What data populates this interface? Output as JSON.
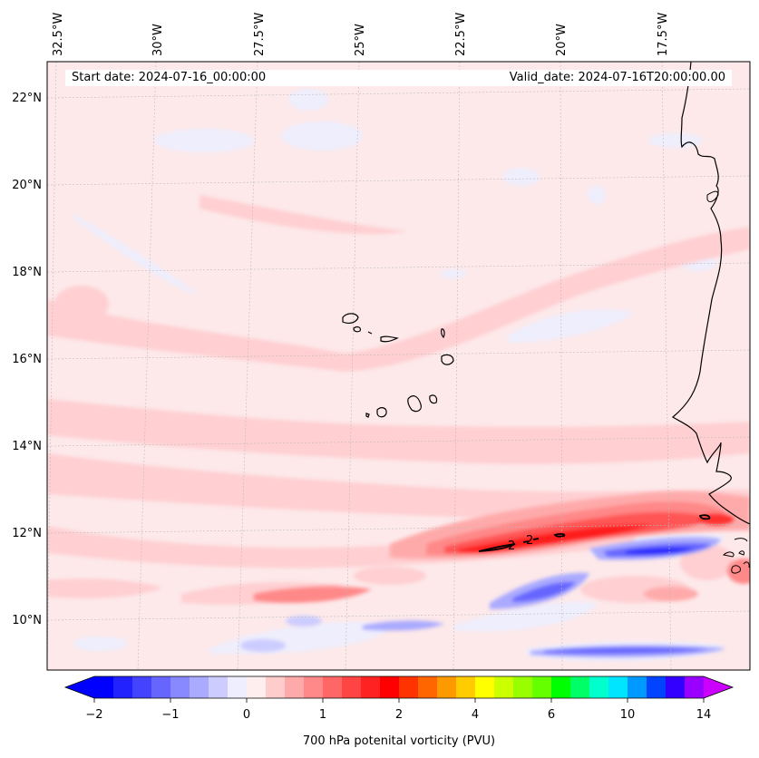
{
  "map": {
    "start_date": "Start date: 2024-07-16_00:00:00",
    "valid_date": "Valid_date: 2024-07-16T20:00:00.00",
    "lon_labels": [
      "32.5°W",
      "30°W",
      "27.5°W",
      "25°W",
      "22.5°W",
      "20°W",
      "17.5°W"
    ],
    "lat_labels": [
      "22°N",
      "20°N",
      "18°N",
      "16°N",
      "14°N",
      "12°N",
      "10°N"
    ],
    "contour_labels": [
      "2",
      "2"
    ],
    "extent": {
      "lon_min": -32.8,
      "lon_max": -15.3,
      "lat_min": 8.9,
      "lat_max": 22.8
    },
    "background_color": "#fde9ea"
  },
  "colorbar": {
    "label": "700 hPa potenital vorticity (PVU)",
    "tick_labels": [
      "−2",
      "−1",
      "0",
      "1",
      "2",
      "4",
      "6",
      "10",
      "14"
    ],
    "tick_values": [
      -2,
      -1,
      0,
      1,
      2,
      4,
      6,
      10,
      14
    ],
    "colors": [
      "#0000ff",
      "#2222ff",
      "#4444ff",
      "#6666ff",
      "#8888ff",
      "#aaaaff",
      "#ccccff",
      "#eeeeff",
      "#ffeeee",
      "#ffcccc",
      "#ffaaaa",
      "#ff8888",
      "#ff6666",
      "#ff4444",
      "#ff2222",
      "#ff0000",
      "#ff3300",
      "#ff6600",
      "#ff9900",
      "#ffcc00",
      "#ffff00",
      "#ccff00",
      "#99ff00",
      "#66ff00",
      "#00ff00",
      "#00ff66",
      "#00ffcc",
      "#00e5ff",
      "#0099ff",
      "#0044ff",
      "#3300ff",
      "#9900ff"
    ],
    "extend_low_color": "#0000ff",
    "extend_high_color": "#cc00ff"
  }
}
